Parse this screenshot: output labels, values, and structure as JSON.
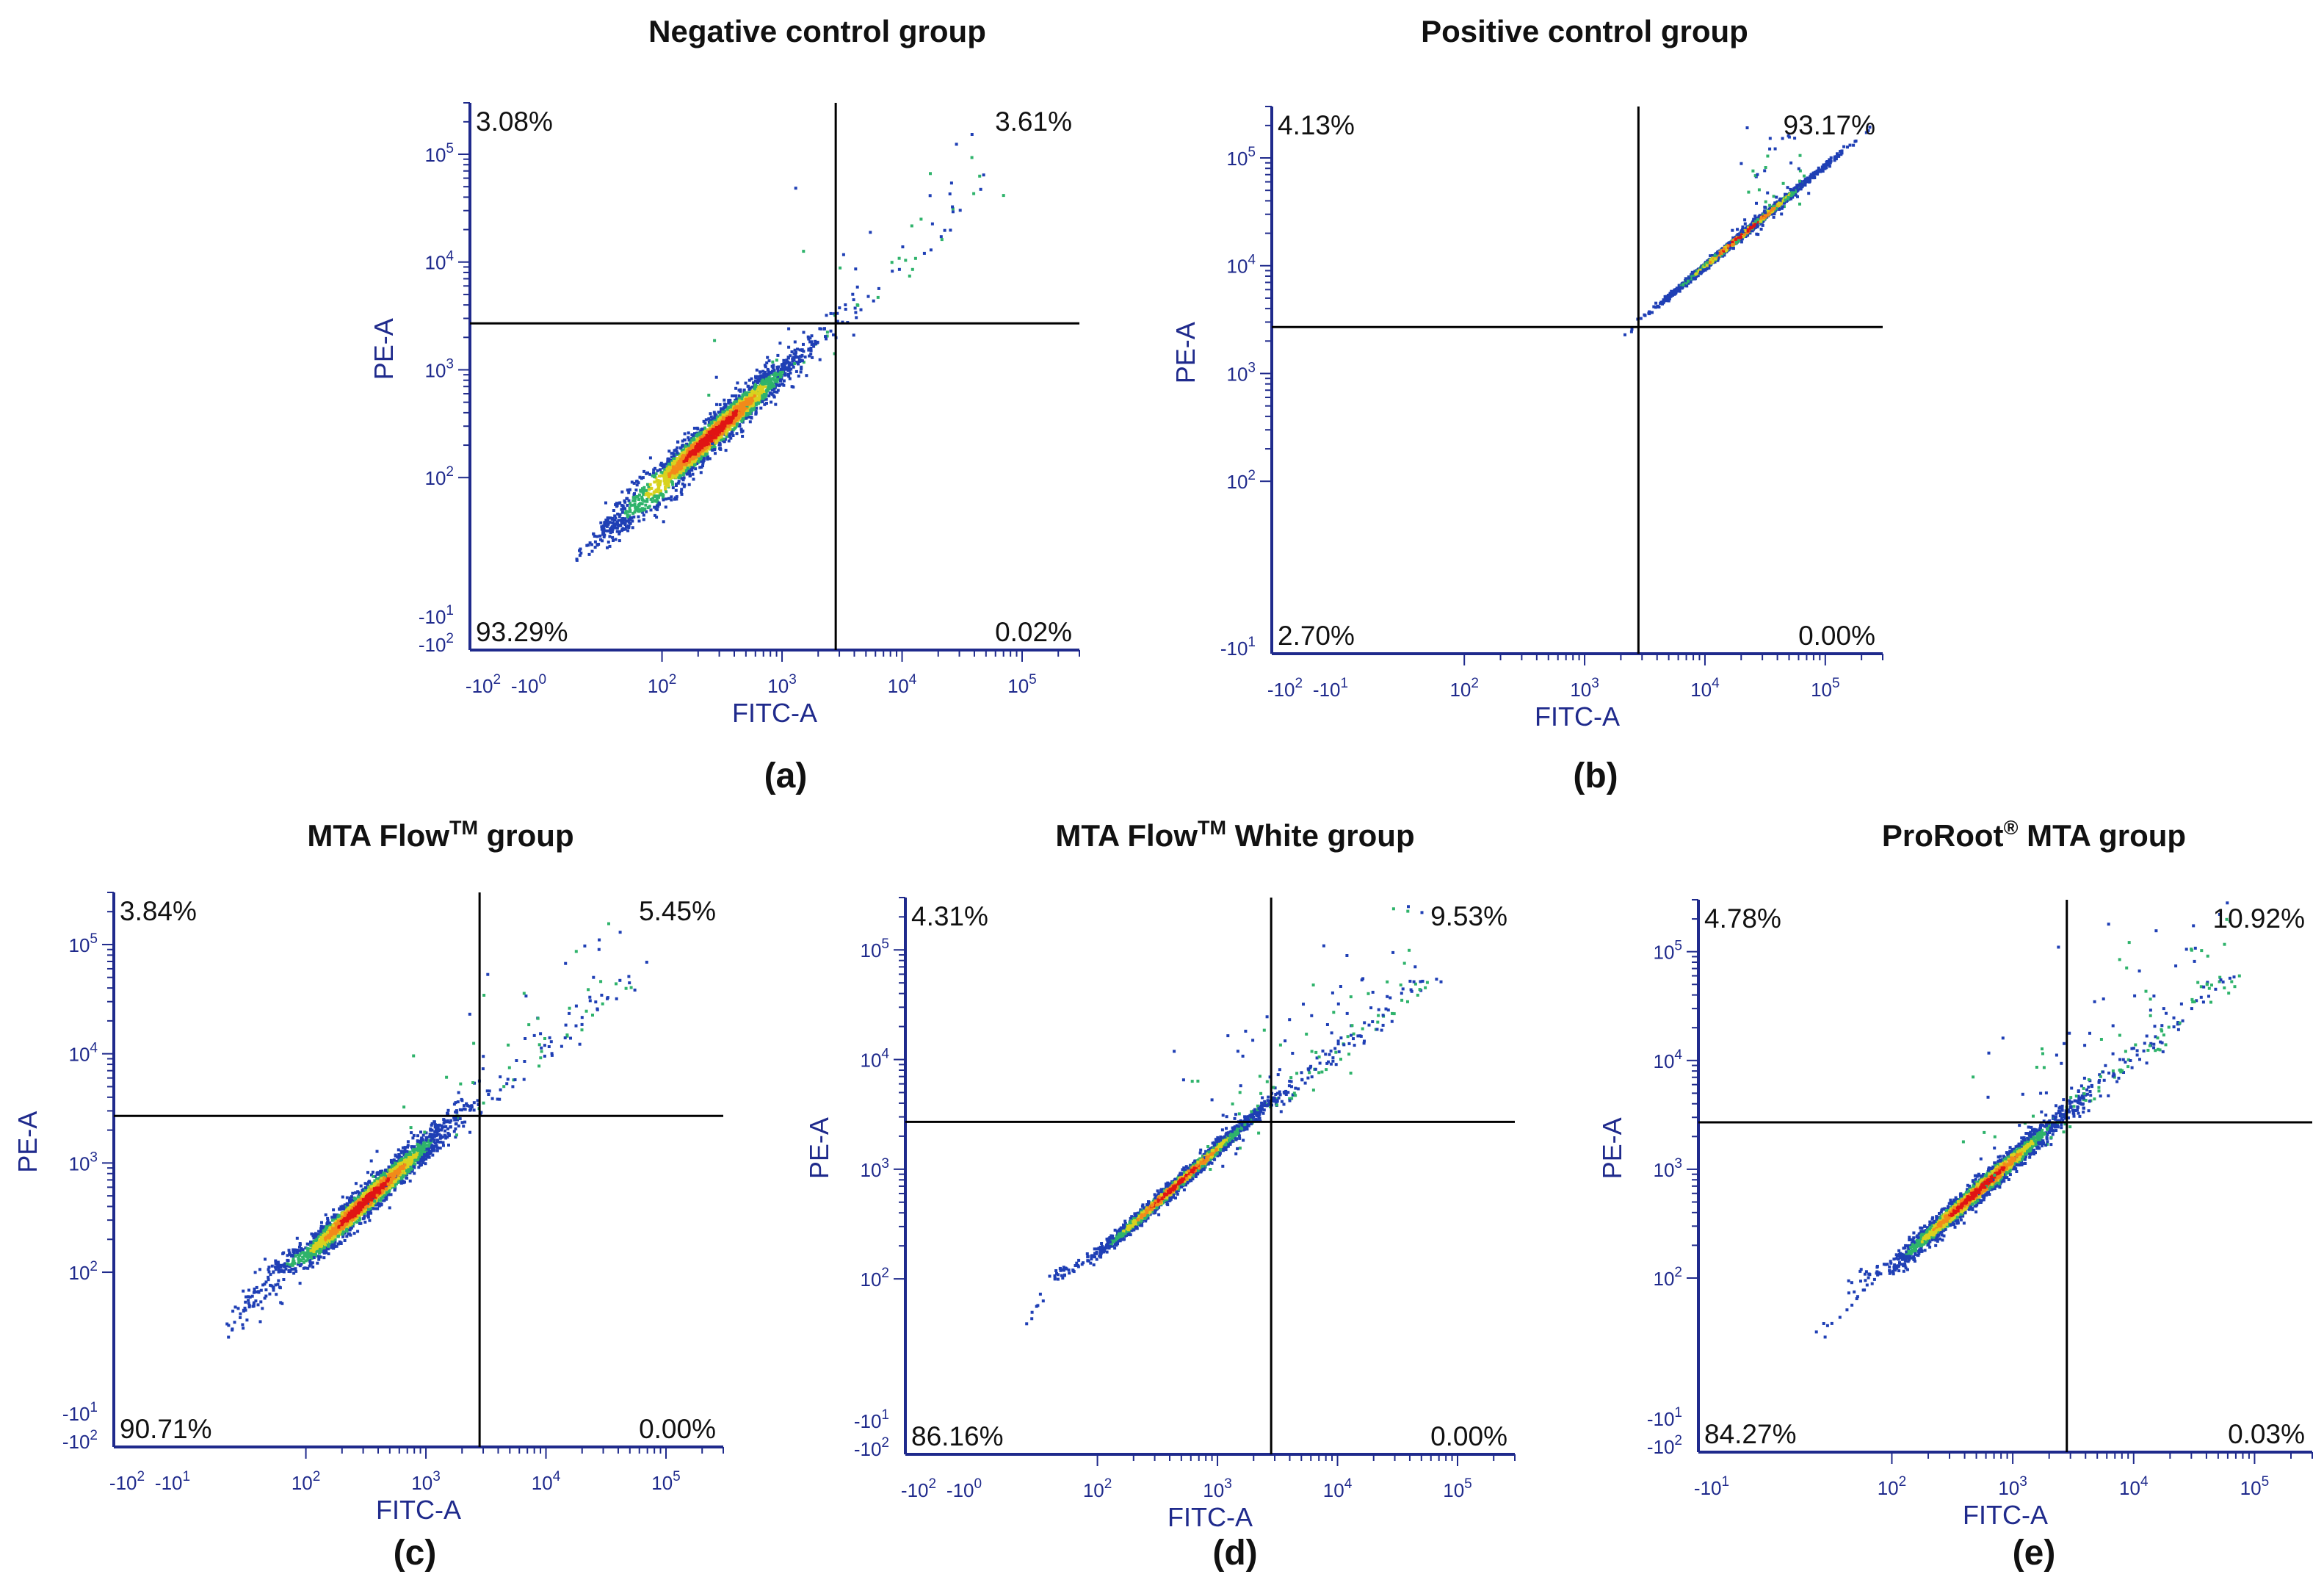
{
  "chart_data": [
    {
      "type": "scatter",
      "title": "Negative control group",
      "caption": "(a)",
      "xlabel": "FITC-A",
      "ylabel": "PE-A",
      "x_ticks": [
        {
          "base": "-10",
          "exp": "2"
        },
        {
          "base": "-10",
          "exp": "0"
        },
        {
          "base": "10",
          "exp": "2"
        },
        {
          "base": "10",
          "exp": "3"
        },
        {
          "base": "10",
          "exp": "4"
        },
        {
          "base": "10",
          "exp": "5"
        }
      ],
      "y_ticks": [
        {
          "base": "-10",
          "exp": "2"
        },
        {
          "base": "-10",
          "exp": "1"
        },
        {
          "base": "10",
          "exp": "2"
        },
        {
          "base": "10",
          "exp": "3"
        },
        {
          "base": "10",
          "exp": "4"
        },
        {
          "base": "10",
          "exp": "5"
        }
      ],
      "gate": {
        "x": 2800,
        "y": 2700
      },
      "quadrants": {
        "upper_left": "3.08%",
        "upper_right": "3.61%",
        "lower_left": "93.29%",
        "lower_right": "0.02%"
      },
      "population": {
        "center_x": 250,
        "center_y": 250,
        "spread_x": 0.35,
        "spread_y": 0.32,
        "tail_fraction": 0.04
      }
    },
    {
      "type": "scatter",
      "title": "Positive control group",
      "caption": "(b)",
      "xlabel": "FITC-A",
      "ylabel": "PE-A",
      "x_ticks": [
        {
          "base": "-10",
          "exp": "2"
        },
        {
          "base": "-10",
          "exp": "1"
        },
        {
          "base": "10",
          "exp": "2"
        },
        {
          "base": "10",
          "exp": "3"
        },
        {
          "base": "10",
          "exp": "4"
        },
        {
          "base": "10",
          "exp": "5"
        }
      ],
      "y_ticks": [
        {
          "base": "-10",
          "exp": "1"
        },
        {
          "base": "10",
          "exp": "2"
        },
        {
          "base": "10",
          "exp": "3"
        },
        {
          "base": "10",
          "exp": "4"
        },
        {
          "base": "10",
          "exp": "5"
        }
      ],
      "gate": {
        "x": 2800,
        "y": 2700
      },
      "quadrants": {
        "upper_left": "4.13%",
        "upper_right": "93.17%",
        "lower_left": "2.70%",
        "lower_right": "0.00%"
      },
      "population": {
        "center_x": 20000,
        "center_y": 20000,
        "spread_x": 0.3,
        "spread_y": 0.12,
        "tail_fraction": 0.03
      }
    },
    {
      "type": "scatter",
      "title": "MTA Flow",
      "title_sup": "TM",
      "title_rest": " group",
      "caption": "(c)",
      "xlabel": "FITC-A",
      "ylabel": "PE-A",
      "x_ticks": [
        {
          "base": "-10",
          "exp": "2"
        },
        {
          "base": "-10",
          "exp": "1"
        },
        {
          "base": "10",
          "exp": "2"
        },
        {
          "base": "10",
          "exp": "3"
        },
        {
          "base": "10",
          "exp": "4"
        },
        {
          "base": "10",
          "exp": "5"
        }
      ],
      "y_ticks": [
        {
          "base": "-10",
          "exp": "2"
        },
        {
          "base": "-10",
          "exp": "1"
        },
        {
          "base": "10",
          "exp": "2"
        },
        {
          "base": "10",
          "exp": "3"
        },
        {
          "base": "10",
          "exp": "4"
        },
        {
          "base": "10",
          "exp": "5"
        }
      ],
      "gate": {
        "x": 2800,
        "y": 2700
      },
      "quadrants": {
        "upper_left": "3.84%",
        "upper_right": "5.45%",
        "lower_left": "90.71%",
        "lower_right": "0.00%"
      },
      "population": {
        "center_x": 300,
        "center_y": 450,
        "spread_x": 0.33,
        "spread_y": 0.3,
        "tail_fraction": 0.06
      }
    },
    {
      "type": "scatter",
      "title": "MTA Flow",
      "title_sup": "TM",
      "title_rest": " White group",
      "caption": "(d)",
      "xlabel": "FITC-A",
      "ylabel": "PE-A",
      "x_ticks": [
        {
          "base": "-10",
          "exp": "2"
        },
        {
          "base": "-10",
          "exp": "0"
        },
        {
          "base": "10",
          "exp": "2"
        },
        {
          "base": "10",
          "exp": "3"
        },
        {
          "base": "10",
          "exp": "4"
        },
        {
          "base": "10",
          "exp": "5"
        }
      ],
      "y_ticks": [
        {
          "base": "-10",
          "exp": "2"
        },
        {
          "base": "-10",
          "exp": "1"
        },
        {
          "base": "10",
          "exp": "2"
        },
        {
          "base": "10",
          "exp": "3"
        },
        {
          "base": "10",
          "exp": "4"
        },
        {
          "base": "10",
          "exp": "5"
        }
      ],
      "gate": {
        "x": 2800,
        "y": 2700
      },
      "quadrants": {
        "upper_left": "4.31%",
        "upper_right": "9.53%",
        "lower_left": "86.16%",
        "lower_right": "0.00%"
      },
      "population": {
        "center_x": 450,
        "center_y": 750,
        "spread_x": 0.33,
        "spread_y": 0.22,
        "tail_fraction": 0.1
      }
    },
    {
      "type": "scatter",
      "title": "ProRoot",
      "title_sup": "®",
      "title_rest": " MTA group",
      "caption": "(e)",
      "xlabel": "FITC-A",
      "ylabel": "PE-A",
      "x_ticks": [
        {
          "base": "-10",
          "exp": "1"
        },
        {
          "base": "10",
          "exp": "2"
        },
        {
          "base": "10",
          "exp": "3"
        },
        {
          "base": "10",
          "exp": "4"
        },
        {
          "base": "10",
          "exp": "5"
        }
      ],
      "y_ticks": [
        {
          "base": "-10",
          "exp": "2"
        },
        {
          "base": "-10",
          "exp": "1"
        },
        {
          "base": "10",
          "exp": "2"
        },
        {
          "base": "10",
          "exp": "3"
        },
        {
          "base": "10",
          "exp": "4"
        },
        {
          "base": "10",
          "exp": "5"
        }
      ],
      "gate": {
        "x": 2800,
        "y": 2700
      },
      "quadrants": {
        "upper_left": "4.78%",
        "upper_right": "10.92%",
        "lower_left": "84.27%",
        "lower_right": "0.03%"
      },
      "population": {
        "center_x": 500,
        "center_y": 650,
        "spread_x": 0.35,
        "spread_y": 0.26,
        "tail_fraction": 0.11
      }
    }
  ],
  "colors": {
    "axis": "#1f2a8c",
    "gate_line": "#000000",
    "density_low": "#1f3fb5",
    "density_mid": "#2fb36b",
    "density_midhigh": "#d8d21f",
    "density_high": "#f28a1a",
    "density_peak": "#e01414"
  }
}
